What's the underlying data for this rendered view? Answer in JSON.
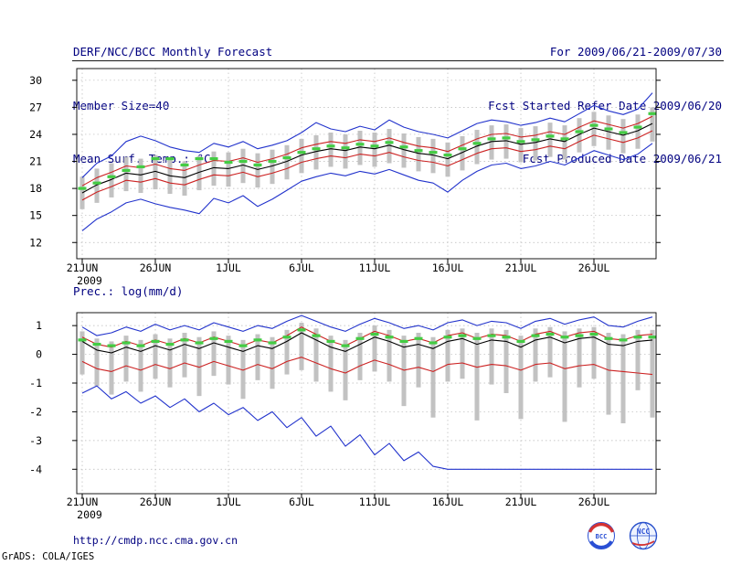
{
  "colors": {
    "header_text": "#000080",
    "axis_text": "#000000",
    "frame": "#000000",
    "grid": "#b8b8b8",
    "bar": "#c2c2c2",
    "ensemble_envelope": "#2233cc",
    "std_band": "#cc2222",
    "mean_line": "#000000",
    "obs_dash": "#44cc44"
  },
  "header": {
    "title": "DERF/NCC/BCC Monthly Forecast",
    "member_size": "Member Size=40",
    "variable_label": "Mean Surf. Temp.: °C",
    "for_range": "For 2009/06/21-2009/07/30",
    "refer_date": "Fcst Started Refer Date 2009/06/20",
    "produced_date": "Fcst Produced Date 2009/06/21"
  },
  "footer": {
    "url": "http://cmdp.ncc.cma.gov.cn",
    "grads_credit": "GrADS: COLA/IGES",
    "logos": [
      {
        "name": "bcc-logo",
        "label": "BCC"
      },
      {
        "name": "ncc-logo",
        "label": "NCC"
      }
    ]
  },
  "chart_data": [
    {
      "type": "line",
      "title": "Mean Surf. Temp.: °C",
      "n_days": 40,
      "x_tick_labels": [
        "21JUN",
        "26JUN",
        "1JUL",
        "6JUL",
        "11JUL",
        "16JUL",
        "21JUL",
        "26JUL"
      ],
      "x_tick_days": [
        0,
        5,
        10,
        15,
        20,
        25,
        30,
        35
      ],
      "year_label": "2009",
      "ylim": [
        10.2,
        31.3
      ],
      "y_ticks": [
        12,
        15,
        18,
        21,
        24,
        27,
        30
      ],
      "grid": true,
      "legend": "none",
      "bars": {
        "name": "ensemble-spread-bars",
        "color": "#c2c2c2",
        "low": [
          15.7,
          16.4,
          17.0,
          17.7,
          17.5,
          17.9,
          17.4,
          17.2,
          17.8,
          18.3,
          18.2,
          18.6,
          18.1,
          18.5,
          19.0,
          19.7,
          20.1,
          20.4,
          20.2,
          20.6,
          20.4,
          20.8,
          20.3,
          19.9,
          19.7,
          19.3,
          20.0,
          20.7,
          21.2,
          21.3,
          20.9,
          21.1,
          21.5,
          21.2,
          22.0,
          22.7,
          22.3,
          21.9,
          22.4,
          23.2
        ],
        "high": [
          19.3,
          20.2,
          20.8,
          21.5,
          21.3,
          21.7,
          21.2,
          21.0,
          21.6,
          22.1,
          22.0,
          22.4,
          21.9,
          22.3,
          22.8,
          23.5,
          23.9,
          24.2,
          24.0,
          24.4,
          24.2,
          24.6,
          24.1,
          23.7,
          23.5,
          23.1,
          23.8,
          24.5,
          25.0,
          25.1,
          24.7,
          24.9,
          25.3,
          25.0,
          25.8,
          26.5,
          26.1,
          25.7,
          26.2,
          27.0
        ]
      },
      "series": [
        {
          "name": "ensemble-max",
          "color": "#2233cc",
          "style": "solid",
          "values": [
            19.2,
            20.8,
            21.6,
            23.2,
            23.8,
            23.3,
            22.6,
            22.2,
            22.0,
            23.0,
            22.6,
            23.2,
            22.4,
            22.8,
            23.3,
            24.2,
            25.3,
            24.6,
            24.3,
            24.9,
            24.5,
            25.6,
            24.8,
            24.3,
            24.0,
            23.6,
            24.4,
            25.2,
            25.6,
            25.4,
            25.0,
            25.3,
            25.8,
            25.4,
            26.3,
            27.2,
            26.6,
            26.2,
            26.8,
            28.6
          ]
        },
        {
          "name": "ensemble-min",
          "color": "#2233cc",
          "style": "solid",
          "values": [
            13.3,
            14.6,
            15.4,
            16.4,
            16.8,
            16.3,
            15.9,
            15.6,
            15.2,
            16.9,
            16.4,
            17.2,
            16.0,
            16.8,
            17.8,
            18.8,
            19.3,
            19.7,
            19.4,
            19.9,
            19.6,
            20.1,
            19.5,
            18.9,
            18.6,
            17.6,
            18.9,
            19.9,
            20.6,
            20.8,
            20.2,
            20.5,
            21.0,
            20.6,
            21.4,
            22.2,
            21.7,
            21.2,
            21.8,
            23.0
          ]
        },
        {
          "name": "std-upper",
          "color": "#cc2222",
          "style": "solid",
          "values": [
            18.3,
            19.2,
            19.8,
            20.5,
            20.3,
            20.7,
            20.2,
            20.0,
            20.6,
            21.1,
            21.0,
            21.4,
            20.9,
            21.3,
            21.8,
            22.5,
            22.9,
            23.2,
            23.0,
            23.4,
            23.2,
            23.6,
            23.1,
            22.7,
            22.5,
            22.1,
            22.8,
            23.5,
            24.0,
            24.1,
            23.7,
            23.9,
            24.3,
            24.0,
            24.8,
            25.5,
            25.1,
            24.7,
            25.2,
            26.0
          ]
        },
        {
          "name": "std-lower",
          "color": "#cc2222",
          "style": "solid",
          "values": [
            16.7,
            17.6,
            18.2,
            18.9,
            18.7,
            19.1,
            18.6,
            18.4,
            19.0,
            19.5,
            19.4,
            19.8,
            19.3,
            19.7,
            20.2,
            20.9,
            21.3,
            21.6,
            21.4,
            21.8,
            21.6,
            22.0,
            21.5,
            21.1,
            20.9,
            20.5,
            21.2,
            21.9,
            22.4,
            22.5,
            22.1,
            22.3,
            22.7,
            22.4,
            23.2,
            23.9,
            23.5,
            23.1,
            23.6,
            24.4
          ]
        },
        {
          "name": "ensemble-mean",
          "color": "#000000",
          "style": "solid",
          "values": [
            17.5,
            18.4,
            19.0,
            19.7,
            19.5,
            19.9,
            19.4,
            19.2,
            19.8,
            20.3,
            20.2,
            20.6,
            20.1,
            20.5,
            21.0,
            21.7,
            22.1,
            22.4,
            22.2,
            22.6,
            22.4,
            22.8,
            22.3,
            21.9,
            21.7,
            21.3,
            22.0,
            22.7,
            23.2,
            23.3,
            22.9,
            23.1,
            23.5,
            23.2,
            24.0,
            24.7,
            24.3,
            23.9,
            24.4,
            25.2
          ]
        },
        {
          "name": "observation",
          "color": "#44cc44",
          "style": "dash-marker",
          "values": [
            18.0,
            18.6,
            19.3,
            20.0,
            20.4,
            21.3,
            21.3,
            20.6,
            21.3,
            21.3,
            20.9,
            21.0,
            20.6,
            21.0,
            21.4,
            22.0,
            22.4,
            22.7,
            22.5,
            22.9,
            22.7,
            23.1,
            22.6,
            22.2,
            22.0,
            21.7,
            22.4,
            23.0,
            23.5,
            23.6,
            23.2,
            23.4,
            23.8,
            23.5,
            24.3,
            25.0,
            24.6,
            24.2,
            24.8,
            26.3
          ]
        }
      ]
    },
    {
      "type": "line",
      "title": "Prec.: log(mm/d)",
      "n_days": 40,
      "x_tick_labels": [
        "21JUN",
        "26JUN",
        "1JUL",
        "6JUL",
        "11JUL",
        "16JUL",
        "21JUL",
        "26JUL"
      ],
      "x_tick_days": [
        0,
        5,
        10,
        15,
        20,
        25,
        30,
        35
      ],
      "year_label": "2009",
      "ylim": [
        -4.85,
        1.45
      ],
      "y_ticks": [
        -4,
        -3,
        -2,
        -1,
        0,
        1
      ],
      "grid": true,
      "legend": "none",
      "bars": {
        "name": "ensemble-spread-bars",
        "color": "#c2c2c2",
        "low": [
          -0.7,
          -1.1,
          -1.4,
          -0.95,
          -1.3,
          -0.85,
          -1.15,
          -0.8,
          -1.45,
          -0.75,
          -1.05,
          -1.55,
          -0.9,
          -1.2,
          -0.7,
          -0.55,
          -0.95,
          -1.3,
          -1.6,
          -0.9,
          -0.6,
          -0.95,
          -1.8,
          -1.15,
          -2.2,
          -0.95,
          -0.85,
          -2.3,
          -1.05,
          -1.35,
          -2.25,
          -0.95,
          -0.8,
          -2.35,
          -1.15,
          -0.85,
          -2.1,
          -2.4,
          -1.25,
          -2.2
        ],
        "high": [
          0.8,
          0.55,
          0.45,
          0.65,
          0.5,
          0.7,
          0.55,
          0.75,
          0.6,
          0.8,
          0.65,
          0.5,
          0.7,
          0.6,
          0.85,
          1.1,
          0.9,
          0.65,
          0.5,
          0.75,
          1.0,
          0.85,
          0.65,
          0.75,
          0.6,
          0.85,
          0.9,
          0.75,
          0.9,
          0.85,
          0.65,
          0.9,
          0.95,
          0.8,
          0.9,
          0.95,
          0.75,
          0.7,
          0.85,
          0.85
        ]
      },
      "series": [
        {
          "name": "ensemble-max",
          "color": "#2233cc",
          "style": "solid",
          "values": [
            0.95,
            0.65,
            0.75,
            0.95,
            0.8,
            1.05,
            0.85,
            1.0,
            0.85,
            1.1,
            0.95,
            0.8,
            1.0,
            0.9,
            1.15,
            1.35,
            1.15,
            0.95,
            0.8,
            1.05,
            1.25,
            1.1,
            0.9,
            1.0,
            0.85,
            1.1,
            1.2,
            1.0,
            1.15,
            1.1,
            0.9,
            1.15,
            1.25,
            1.05,
            1.2,
            1.3,
            1.0,
            0.95,
            1.15,
            1.3
          ]
        },
        {
          "name": "ensemble-min",
          "color": "#2233cc",
          "style": "solid",
          "values": [
            -1.35,
            -1.1,
            -1.55,
            -1.3,
            -1.7,
            -1.45,
            -1.85,
            -1.55,
            -2.0,
            -1.7,
            -2.1,
            -1.85,
            -2.3,
            -2.0,
            -2.55,
            -2.2,
            -2.85,
            -2.5,
            -3.2,
            -2.8,
            -3.5,
            -3.1,
            -3.7,
            -3.4,
            -3.9,
            -4.0,
            -4.0,
            -4.0,
            -4.0,
            -4.0,
            -4.0,
            -4.0,
            -4.0,
            -4.0,
            -4.0,
            -4.0,
            -4.0,
            -4.0,
            -4.0,
            -4.0
          ]
        },
        {
          "name": "std-upper",
          "color": "#cc2222",
          "style": "solid",
          "values": [
            0.6,
            0.35,
            0.25,
            0.45,
            0.3,
            0.5,
            0.35,
            0.55,
            0.4,
            0.6,
            0.45,
            0.3,
            0.5,
            0.4,
            0.65,
            0.95,
            0.7,
            0.45,
            0.3,
            0.55,
            0.8,
            0.65,
            0.45,
            0.55,
            0.4,
            0.65,
            0.75,
            0.55,
            0.7,
            0.65,
            0.45,
            0.7,
            0.8,
            0.6,
            0.75,
            0.8,
            0.55,
            0.5,
            0.65,
            0.7
          ]
        },
        {
          "name": "std-lower",
          "color": "#cc2222",
          "style": "solid",
          "values": [
            -0.25,
            -0.5,
            -0.6,
            -0.4,
            -0.55,
            -0.35,
            -0.5,
            -0.3,
            -0.45,
            -0.25,
            -0.4,
            -0.55,
            -0.35,
            -0.5,
            -0.25,
            -0.1,
            -0.3,
            -0.5,
            -0.65,
            -0.4,
            -0.2,
            -0.35,
            -0.55,
            -0.45,
            -0.6,
            -0.35,
            -0.3,
            -0.45,
            -0.35,
            -0.4,
            -0.55,
            -0.35,
            -0.3,
            -0.5,
            -0.4,
            -0.35,
            -0.55,
            -0.6,
            -0.65,
            -0.7
          ]
        },
        {
          "name": "ensemble-mean",
          "color": "#000000",
          "style": "solid",
          "values": [
            0.45,
            0.15,
            0.05,
            0.25,
            0.1,
            0.3,
            0.15,
            0.35,
            0.2,
            0.4,
            0.25,
            0.1,
            0.3,
            0.2,
            0.45,
            0.75,
            0.5,
            0.25,
            0.1,
            0.35,
            0.6,
            0.45,
            0.25,
            0.35,
            0.2,
            0.45,
            0.55,
            0.35,
            0.5,
            0.45,
            0.25,
            0.5,
            0.6,
            0.4,
            0.55,
            0.6,
            0.35,
            0.3,
            0.45,
            0.5
          ]
        },
        {
          "name": "observation",
          "color": "#44cc44",
          "style": "dash-marker",
          "values": [
            0.5,
            0.35,
            0.3,
            0.4,
            0.3,
            0.45,
            0.35,
            0.5,
            0.4,
            0.55,
            0.45,
            0.3,
            0.5,
            0.4,
            0.6,
            0.85,
            0.65,
            0.45,
            0.3,
            0.55,
            0.7,
            0.6,
            0.45,
            0.55,
            0.4,
            0.6,
            0.65,
            0.55,
            0.65,
            0.6,
            0.45,
            0.65,
            0.7,
            0.6,
            0.65,
            0.7,
            0.55,
            0.5,
            0.6,
            0.6
          ]
        }
      ]
    }
  ]
}
